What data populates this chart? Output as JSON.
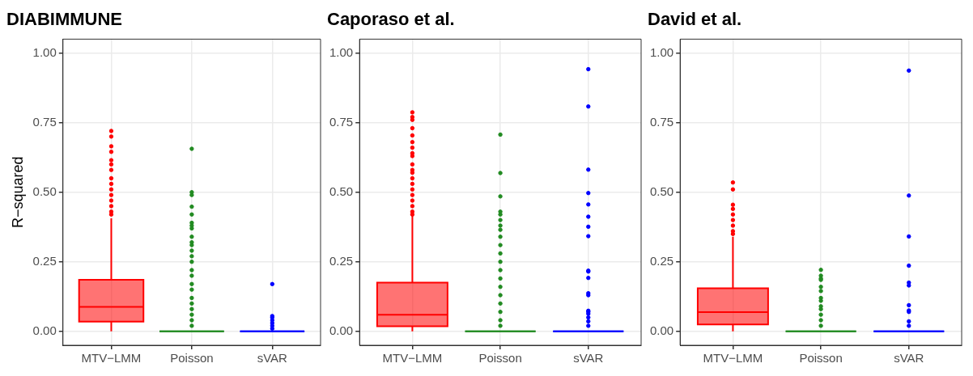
{
  "chart_data": [
    {
      "type": "box",
      "title": "DIABIMMUNE",
      "ylabel": "R−squared",
      "categories": [
        "MTV−LMM",
        "Poisson",
        "sVAR"
      ],
      "colors": [
        "#ff0000",
        "#228b22",
        "#0000ff"
      ],
      "ylim": [
        -0.05,
        1.05
      ],
      "yticks": [
        {
          "value": 0,
          "label": "0.00"
        },
        {
          "value": 0.25,
          "label": "0.25"
        },
        {
          "value": 0.5,
          "label": "0.50"
        },
        {
          "value": 0.75,
          "label": "0.75"
        },
        {
          "value": 1,
          "label": "1.00"
        }
      ],
      "grid": true,
      "boxes": [
        {
          "low": 0,
          "q1": 0.035,
          "median": 0.088,
          "q3": 0.185,
          "high": 0.406,
          "outliers": [
            0.72,
            0.7,
            0.665,
            0.645,
            0.615,
            0.6,
            0.58,
            0.55,
            0.53,
            0.51,
            0.49,
            0.47,
            0.45,
            0.43,
            0.42
          ]
        },
        {
          "low": 0,
          "q1": 0,
          "median": 0,
          "q3": 0,
          "high": 0,
          "outliers": [
            0.656,
            0.5,
            0.49,
            0.448,
            0.42,
            0.39,
            0.38,
            0.37,
            0.34,
            0.32,
            0.31,
            0.29,
            0.27,
            0.25,
            0.22,
            0.2,
            0.17,
            0.15,
            0.12,
            0.1,
            0.08,
            0.06,
            0.04,
            0.02
          ]
        },
        {
          "low": 0,
          "q1": 0,
          "median": 0,
          "q3": 0,
          "high": 0,
          "outliers": [
            0.17,
            0.055,
            0.05,
            0.04,
            0.03,
            0.02,
            0.01
          ]
        }
      ]
    },
    {
      "type": "box",
      "title": "Caporaso et al.",
      "categories": [
        "MTV−LMM",
        "Poisson",
        "sVAR"
      ],
      "colors": [
        "#ff0000",
        "#228b22",
        "#0000ff"
      ],
      "ylim": [
        -0.05,
        1.05
      ],
      "yticks": [
        {
          "value": 0,
          "label": "0.00"
        },
        {
          "value": 0.25,
          "label": "0.25"
        },
        {
          "value": 0.5,
          "label": "0.50"
        },
        {
          "value": 0.75,
          "label": "0.75"
        },
        {
          "value": 1,
          "label": "1.00"
        }
      ],
      "grid": true,
      "boxes": [
        {
          "low": 0,
          "q1": 0.018,
          "median": 0.06,
          "q3": 0.175,
          "high": 0.415,
          "outliers": [
            0.787,
            0.77,
            0.76,
            0.73,
            0.704,
            0.68,
            0.66,
            0.64,
            0.63,
            0.6,
            0.58,
            0.57,
            0.55,
            0.53,
            0.51,
            0.49,
            0.47,
            0.45,
            0.43,
            0.42
          ]
        },
        {
          "low": 0,
          "q1": 0,
          "median": 0,
          "q3": 0,
          "high": 0,
          "outliers": [
            0.707,
            0.569,
            0.485,
            0.43,
            0.42,
            0.4,
            0.38,
            0.365,
            0.34,
            0.31,
            0.28,
            0.25,
            0.22,
            0.19,
            0.16,
            0.13,
            0.1,
            0.07,
            0.04,
            0.02
          ]
        },
        {
          "low": 0,
          "q1": 0,
          "median": 0,
          "q3": 0,
          "high": 0,
          "outliers": [
            0.942,
            0.808,
            0.581,
            0.497,
            0.456,
            0.412,
            0.376,
            0.342,
            0.218,
            0.215,
            0.192,
            0.137,
            0.13,
            0.074,
            0.07,
            0.063,
            0.05,
            0.036,
            0.02
          ]
        }
      ]
    },
    {
      "type": "box",
      "title": "David et al.",
      "categories": [
        "MTV−LMM",
        "Poisson",
        "sVAR"
      ],
      "colors": [
        "#ff0000",
        "#228b22",
        "#0000ff"
      ],
      "ylim": [
        -0.05,
        1.05
      ],
      "yticks": [
        {
          "value": 0,
          "label": "0.00"
        },
        {
          "value": 0.25,
          "label": "0.25"
        },
        {
          "value": 0.5,
          "label": "0.50"
        },
        {
          "value": 0.75,
          "label": "0.75"
        },
        {
          "value": 1,
          "label": "1.00"
        }
      ],
      "grid": true,
      "boxes": [
        {
          "low": 0,
          "q1": 0.025,
          "median": 0.069,
          "q3": 0.155,
          "high": 0.34,
          "outliers": [
            0.535,
            0.51,
            0.455,
            0.44,
            0.42,
            0.4,
            0.38,
            0.36,
            0.35
          ]
        },
        {
          "low": 0,
          "q1": 0,
          "median": 0,
          "q3": 0,
          "high": 0,
          "outliers": [
            0.221,
            0.2,
            0.19,
            0.185,
            0.16,
            0.145,
            0.12,
            0.11,
            0.09,
            0.08,
            0.06,
            0.04,
            0.02
          ]
        },
        {
          "low": 0,
          "q1": 0,
          "median": 0,
          "q3": 0,
          "high": 0,
          "outliers": [
            0.937,
            0.488,
            0.341,
            0.236,
            0.175,
            0.165,
            0.094,
            0.075,
            0.07,
            0.036,
            0.02
          ]
        }
      ]
    }
  ]
}
